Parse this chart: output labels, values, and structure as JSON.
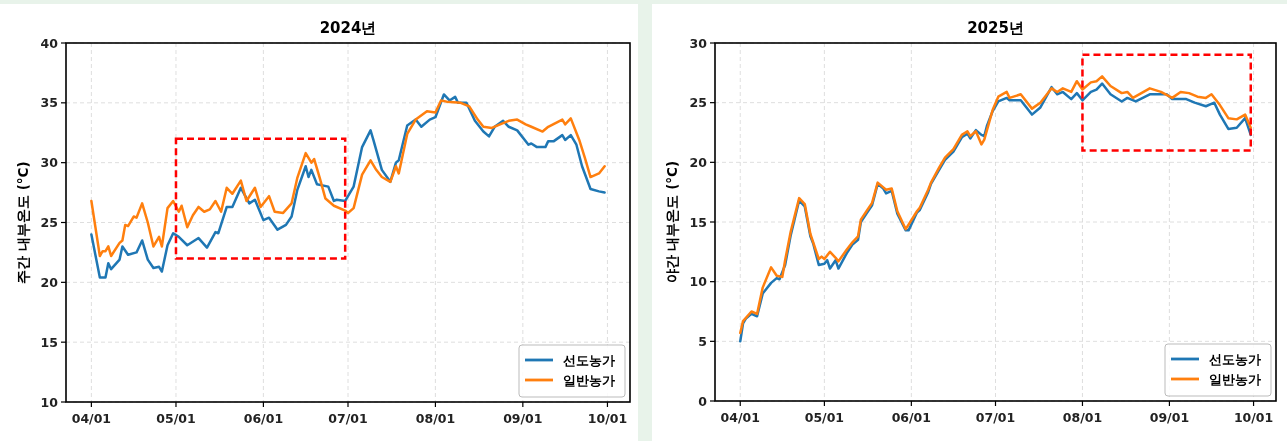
{
  "chart_data": [
    {
      "type": "line",
      "title": "2024년",
      "ylabel": "주간 내부온도 (°C)",
      "xlim": [
        "--03-23",
        "--10-09"
      ],
      "ylim": [
        10,
        40
      ],
      "yticks": [
        10,
        15,
        20,
        25,
        30,
        35,
        40
      ],
      "xticks": [
        {
          "value": "--04-01",
          "label": "04/01"
        },
        {
          "value": "--05-01",
          "label": "05/01"
        },
        {
          "value": "--06-01",
          "label": "06/01"
        },
        {
          "value": "--07-01",
          "label": "07/01"
        },
        {
          "value": "--08-01",
          "label": "08/01"
        },
        {
          "value": "--09-01",
          "label": "09/01"
        },
        {
          "value": "--10-01",
          "label": "10/01"
        }
      ],
      "grid": true,
      "legend": "bottom right",
      "line_style": "solid",
      "series": [
        {
          "name": "선도농가",
          "color": "#1f77b4",
          "x": [
            "--04-01",
            "--04-04",
            "--04-06",
            "--04-07",
            "--04-08",
            "--04-11",
            "--04-12",
            "--04-14",
            "--04-17",
            "--04-19",
            "--04-21",
            "--04-23",
            "--04-25",
            "--04-26",
            "--04-28",
            "--04-30",
            "--05-02",
            "--05-05",
            "--05-09",
            "--05-12",
            "--05-15",
            "--05-16",
            "--05-19",
            "--05-21",
            "--05-24",
            "--05-27",
            "--05-29",
            "--06-01",
            "--06-03",
            "--06-06",
            "--06-09",
            "--06-11",
            "--06-13",
            "--06-16",
            "--06-17",
            "--06-18",
            "--06-20",
            "--06-24",
            "--06-26",
            "--06-27",
            "--06-30",
            "--07-03",
            "--07-06",
            "--07-09",
            "--07-10",
            "--07-13",
            "--07-16",
            "--07-18",
            "--07-19",
            "--07-22",
            "--07-25",
            "--07-27",
            "--07-30",
            "--08-01",
            "--08-04",
            "--08-06",
            "--08-08",
            "--08-09",
            "--08-12",
            "--08-15",
            "--08-18",
            "--08-20",
            "--08-22",
            "--08-25",
            "--08-27",
            "--08-30",
            "--09-03",
            "--09-04",
            "--09-06",
            "--09-09",
            "--09-10",
            "--09-12",
            "--09-15",
            "--09-16",
            "--09-18",
            "--09-20",
            "--09-22",
            "--09-25",
            "--09-28",
            "--09-30"
          ],
          "values": [
            24.0,
            20.4,
            20.4,
            21.6,
            21.1,
            21.9,
            23.0,
            22.3,
            22.5,
            23.5,
            21.9,
            21.2,
            21.3,
            20.9,
            23.1,
            24.1,
            23.8,
            23.1,
            23.7,
            22.9,
            24.2,
            24.1,
            26.3,
            26.3,
            27.9,
            26.6,
            26.9,
            25.2,
            25.4,
            24.4,
            24.8,
            25.5,
            27.7,
            29.7,
            28.8,
            29.4,
            28.2,
            28.0,
            26.8,
            26.9,
            26.8,
            28.0,
            31.3,
            32.7,
            31.9,
            29.4,
            28.4,
            30.0,
            30.2,
            33.1,
            33.6,
            33.0,
            33.6,
            33.8,
            35.7,
            35.2,
            35.5,
            35.0,
            35.0,
            33.5,
            32.6,
            32.2,
            33.0,
            33.5,
            33.0,
            32.7,
            31.5,
            31.6,
            31.3,
            31.3,
            31.8,
            31.8,
            32.3,
            31.9,
            32.3,
            31.5,
            29.7,
            27.8,
            27.6,
            27.5
          ]
        },
        {
          "name": "일반농가",
          "color": "#ff7f0e",
          "x": [
            "--04-01",
            "--04-04",
            "--04-05",
            "--04-06",
            "--04-07",
            "--04-08",
            "--04-11",
            "--04-12",
            "--04-13",
            "--04-14",
            "--04-16",
            "--04-17",
            "--04-19",
            "--04-21",
            "--04-23",
            "--04-25",
            "--04-26",
            "--04-28",
            "--04-30",
            "--05-02",
            "--05-03",
            "--05-05",
            "--05-07",
            "--05-09",
            "--05-11",
            "--05-13",
            "--05-15",
            "--05-17",
            "--05-19",
            "--05-21",
            "--05-24",
            "--05-26",
            "--05-29",
            "--05-31",
            "--06-03",
            "--06-05",
            "--06-08",
            "--06-11",
            "--06-13",
            "--06-16",
            "--06-18",
            "--06-19",
            "--06-21",
            "--06-23",
            "--06-26",
            "--06-30",
            "--07-01",
            "--07-03",
            "--07-06",
            "--07-09",
            "--07-11",
            "--07-13",
            "--07-16",
            "--07-18",
            "--07-19",
            "--07-22",
            "--07-25",
            "--07-29",
            "--08-01",
            "--08-03",
            "--08-05",
            "--08-10",
            "--08-13",
            "--08-16",
            "--08-18",
            "--08-21",
            "--08-25",
            "--08-27",
            "--08-30",
            "--09-02",
            "--09-04",
            "--09-08",
            "--09-10",
            "--09-15",
            "--09-16",
            "--09-18",
            "--09-21",
            "--09-23",
            "--09-25",
            "--09-28",
            "--09-30"
          ],
          "values": [
            26.8,
            22.2,
            22.6,
            22.6,
            23.0,
            22.2,
            23.3,
            23.5,
            24.8,
            24.7,
            25.5,
            25.4,
            26.6,
            25.0,
            23.0,
            23.8,
            23.0,
            26.2,
            26.8,
            25.9,
            26.4,
            24.6,
            25.6,
            26.3,
            25.9,
            26.1,
            26.8,
            25.9,
            27.9,
            27.4,
            28.5,
            26.8,
            27.9,
            26.3,
            27.2,
            25.9,
            25.8,
            26.6,
            28.7,
            30.8,
            30.0,
            30.3,
            28.7,
            27.0,
            26.4,
            26.0,
            25.8,
            26.2,
            29.0,
            30.2,
            29.4,
            28.8,
            28.4,
            29.7,
            29.1,
            32.4,
            33.6,
            34.3,
            34.2,
            35.2,
            35.1,
            35.0,
            34.7,
            33.6,
            33.0,
            32.9,
            33.3,
            33.5,
            33.6,
            33.2,
            33.0,
            32.6,
            33.0,
            33.6,
            33.2,
            33.7,
            31.9,
            30.4,
            28.8,
            29.1,
            29.7
          ]
        }
      ]
    },
    {
      "type": "line",
      "title": "2025년",
      "ylabel": "야간 내부온도 (°C)",
      "xlim": [
        "--03-23",
        "--10-09"
      ],
      "ylim": [
        0,
        30
      ],
      "yticks": [
        0,
        5,
        10,
        15,
        20,
        25,
        30
      ],
      "xticks": [
        {
          "value": "--04-01",
          "label": "04/01"
        },
        {
          "value": "--05-01",
          "label": "05/01"
        },
        {
          "value": "--06-01",
          "label": "06/01"
        },
        {
          "value": "--07-01",
          "label": "07/01"
        },
        {
          "value": "--08-01",
          "label": "08/01"
        },
        {
          "value": "--09-01",
          "label": "09/01"
        },
        {
          "value": "--10-01",
          "label": "10/01"
        }
      ],
      "grid": true,
      "legend": "bottom right",
      "line_style": "solid",
      "series": [
        {
          "name": "선도농가",
          "color": "#1f77b4",
          "x": [
            "--04-01",
            "--04-02",
            "--04-03",
            "--04-05",
            "--04-07",
            "--04-09",
            "--04-12",
            "--04-14",
            "--04-15",
            "--04-17",
            "--04-19",
            "--04-22",
            "--04-24",
            "--04-26",
            "--04-27",
            "--04-29",
            "--05-01",
            "--05-02",
            "--05-03",
            "--05-05",
            "--05-06",
            "--05-09",
            "--05-11",
            "--05-13",
            "--05-14",
            "--05-16",
            "--05-18",
            "--05-20",
            "--05-22",
            "--05-23",
            "--05-25",
            "--05-27",
            "--05-30",
            "--05-31",
            "--06-03",
            "--06-04",
            "--06-07",
            "--06-08",
            "--06-11",
            "--06-13",
            "--06-16",
            "--06-19",
            "--06-21",
            "--06-22",
            "--06-24",
            "--06-26",
            "--06-27",
            "--06-28",
            "--06-30",
            "--07-02",
            "--07-05",
            "--07-06",
            "--07-10",
            "--07-14",
            "--07-17",
            "--07-21",
            "--07-23",
            "--07-25",
            "--07-28",
            "--07-30",
            "--08-01",
            "--08-04",
            "--08-06",
            "--08-08",
            "--08-11",
            "--08-15",
            "--08-17",
            "--08-20",
            "--08-25",
            "--08-31",
            "--09-02",
            "--09-07",
            "--09-10",
            "--09-14",
            "--09-17",
            "--09-19",
            "--09-22",
            "--09-25",
            "--09-28",
            "--09-30"
          ],
          "values": [
            5.0,
            6.5,
            6.9,
            7.3,
            7.1,
            9.0,
            9.9,
            10.3,
            10.2,
            11.4,
            13.9,
            16.8,
            16.3,
            13.8,
            13.2,
            11.4,
            11.5,
            11.8,
            11.1,
            11.8,
            11.1,
            12.4,
            13.1,
            13.5,
            15.0,
            15.7,
            16.4,
            18.2,
            17.8,
            17.4,
            17.6,
            15.7,
            14.3,
            14.3,
            15.8,
            16.0,
            17.5,
            18.2,
            19.4,
            20.2,
            20.9,
            22.1,
            22.4,
            22.0,
            22.7,
            22.3,
            22.2,
            23.1,
            24.3,
            25.1,
            25.4,
            25.2,
            25.2,
            24.0,
            24.6,
            26.3,
            25.7,
            25.9,
            25.3,
            25.8,
            25.2,
            25.9,
            26.1,
            26.6,
            25.7,
            25.1,
            25.4,
            25.1,
            25.7,
            25.7,
            25.3,
            25.3,
            25.0,
            24.7,
            25.0,
            24.0,
            22.8,
            22.9,
            23.7,
            22.3
          ]
        },
        {
          "name": "일반농가",
          "color": "#ff7f0e",
          "x": [
            "--04-01",
            "--04-02",
            "--04-05",
            "--04-07",
            "--04-09",
            "--04-12",
            "--04-14",
            "--04-16",
            "--04-17",
            "--04-19",
            "--04-22",
            "--04-24",
            "--04-26",
            "--04-29",
            "--04-30",
            "--05-01",
            "--05-03",
            "--05-05",
            "--05-06",
            "--05-09",
            "--05-11",
            "--05-13",
            "--05-14",
            "--05-16",
            "--05-18",
            "--05-20",
            "--05-22",
            "--05-23",
            "--05-25",
            "--05-27",
            "--05-30",
            "--06-03",
            "--06-04",
            "--06-07",
            "--06-08",
            "--06-11",
            "--06-13",
            "--06-16",
            "--06-19",
            "--06-21",
            "--06-22",
            "--06-24",
            "--06-26",
            "--06-27",
            "--06-30",
            "--07-02",
            "--07-05",
            "--07-06",
            "--07-10",
            "--07-14",
            "--07-17",
            "--07-21",
            "--07-23",
            "--07-25",
            "--07-28",
            "--07-30",
            "--08-01",
            "--08-04",
            "--08-06",
            "--08-08",
            "--08-11",
            "--08-15",
            "--08-17",
            "--08-19",
            "--08-25",
            "--08-29",
            "--09-02",
            "--09-05",
            "--09-08",
            "--09-11",
            "--09-14",
            "--09-16",
            "--09-19",
            "--09-22",
            "--09-25",
            "--09-28",
            "--09-30"
          ],
          "values": [
            5.7,
            6.7,
            7.5,
            7.3,
            9.5,
            11.2,
            10.5,
            10.4,
            11.8,
            14.2,
            17.0,
            16.5,
            14.0,
            11.9,
            12.1,
            11.9,
            12.5,
            12.0,
            11.7,
            12.7,
            13.3,
            13.8,
            15.2,
            15.9,
            16.6,
            18.3,
            17.9,
            17.7,
            17.8,
            15.9,
            14.4,
            15.9,
            16.2,
            17.7,
            18.3,
            19.6,
            20.4,
            21.1,
            22.3,
            22.6,
            22.2,
            22.6,
            21.5,
            21.9,
            24.4,
            25.5,
            25.9,
            25.4,
            25.7,
            24.5,
            25.0,
            26.2,
            25.9,
            26.2,
            25.9,
            26.8,
            26.1,
            26.7,
            26.8,
            27.2,
            26.4,
            25.8,
            25.9,
            25.4,
            26.2,
            25.9,
            25.4,
            25.9,
            25.8,
            25.5,
            25.4,
            25.7,
            24.8,
            23.7,
            23.6,
            24.0,
            22.9
          ]
        }
      ]
    }
  ]
}
